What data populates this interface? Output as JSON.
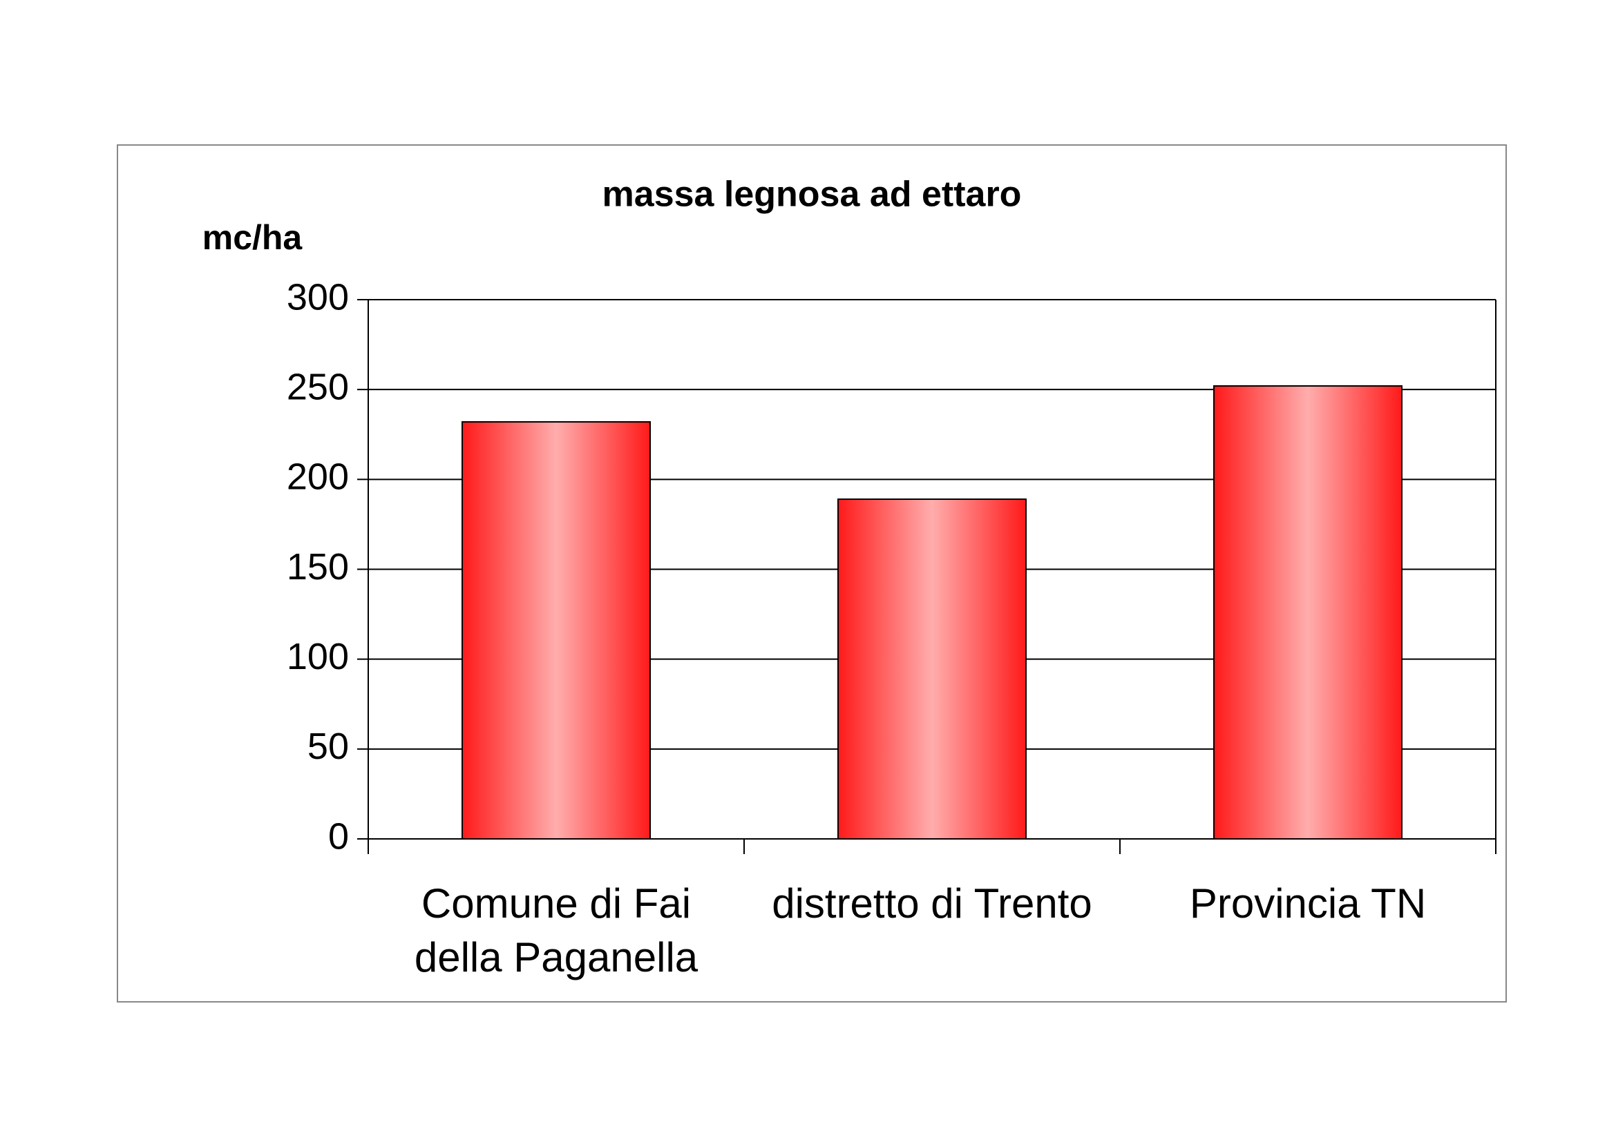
{
  "chart_data": {
    "type": "bar",
    "title": "massa legnosa ad ettaro",
    "y_label": "mc/ha",
    "categories": [
      "Comune di Fai della Paganella",
      "distretto di Trento",
      "Provincia TN"
    ],
    "values": [
      232,
      189,
      252
    ],
    "color": "#ff1a1a",
    "ylim": [
      0,
      300
    ],
    "yticks": [
      0,
      50,
      100,
      150,
      200,
      250,
      300
    ],
    "grid": true
  }
}
